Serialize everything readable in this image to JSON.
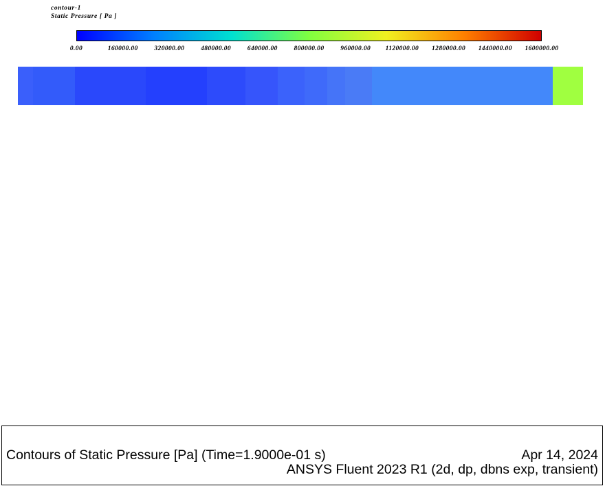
{
  "legend": {
    "line1": "contour-1",
    "line2": "Static Pressure [ Pa ]",
    "colors": [
      "#0000ff",
      "#0080ff",
      "#00e0d0",
      "#80ff40",
      "#f0f020",
      "#ff8000",
      "#d00000"
    ]
  },
  "chart_data": {
    "type": "heatmap",
    "title": "Contours of Static Pressure [Pa]",
    "quantity": "Static Pressure",
    "unit": "Pa",
    "range": [
      0,
      1600000
    ],
    "ticks": [
      "0.00",
      "160000.00",
      "320000.00",
      "480000.00",
      "640000.00",
      "800000.00",
      "960000.00",
      "1120000.00",
      "1280000.00",
      "1440000.00",
      "1600000.00"
    ],
    "bands": [
      {
        "color": "#3a5ffb",
        "share": 0.027
      },
      {
        "color": "#335bfa",
        "share": 0.074
      },
      {
        "color": "#2a48fb",
        "share": 0.125
      },
      {
        "color": "#2440fd",
        "share": 0.108
      },
      {
        "color": "#2d4bfb",
        "share": 0.069
      },
      {
        "color": "#3655fb",
        "share": 0.057
      },
      {
        "color": "#3b62fb",
        "share": 0.047
      },
      {
        "color": "#3f6afa",
        "share": 0.04
      },
      {
        "color": "#4574f8",
        "share": 0.032
      },
      {
        "color": "#4a7bf6",
        "share": 0.047
      },
      {
        "color": "#4388fa",
        "share": 0.321
      },
      {
        "color": "#a0ff40",
        "share": 0.053
      }
    ]
  },
  "footer": {
    "caption": "Contours of Static Pressure [Pa]  (Time=1.9000e-01 s)",
    "date": "Apr 14, 2024",
    "solver": "ANSYS Fluent 2023 R1 (2d, dp, dbns exp, transient)"
  }
}
